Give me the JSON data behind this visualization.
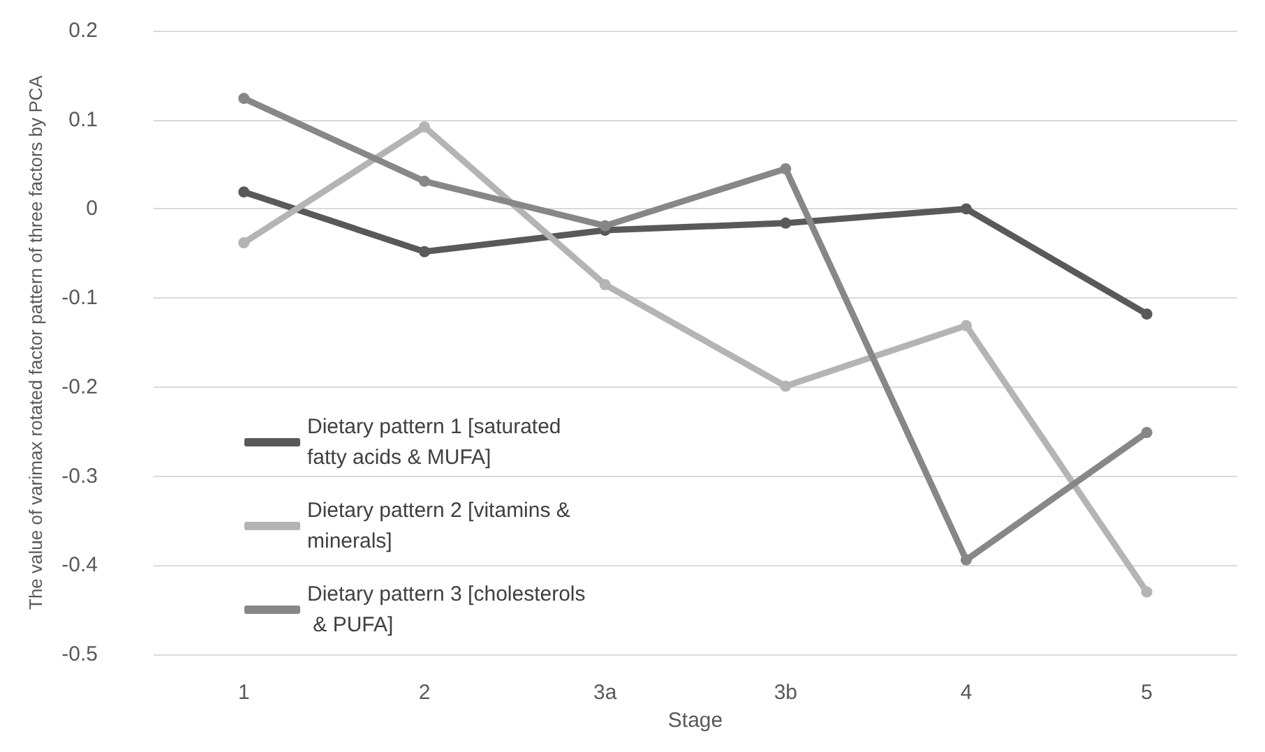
{
  "chart_data": {
    "type": "line",
    "xlabel": "Stage",
    "ylabel": "The value of varimax rotated factor pattern of three factors by PCA",
    "categories": [
      "1",
      "2",
      "3a",
      "3b",
      "4",
      "5"
    ],
    "series": [
      {
        "name": "Dietary pattern 1 [saturated fatty acids & MUFA]",
        "color": "#595959",
        "values": [
          0.019,
          -0.048,
          -0.024,
          -0.016,
          0.0,
          -0.118
        ]
      },
      {
        "name": "Dietary pattern 2 [vitamins & minerals]",
        "color": "#b4b4b4",
        "values": [
          -0.038,
          0.092,
          -0.085,
          -0.199,
          -0.131,
          -0.43
        ]
      },
      {
        "name": "Dietary pattern 3 [cholesterols & PUFA]",
        "color": "#878787",
        "values": [
          0.124,
          0.031,
          -0.019,
          0.045,
          -0.394,
          -0.251
        ]
      }
    ],
    "ylim": [
      -0.5,
      0.2
    ],
    "yticks": [
      -0.5,
      -0.4,
      -0.3,
      -0.2,
      -0.1,
      0,
      0.1,
      0.2
    ],
    "grid": "y",
    "legend": "bottom left",
    "marker": "circle",
    "line_style": "solid"
  }
}
